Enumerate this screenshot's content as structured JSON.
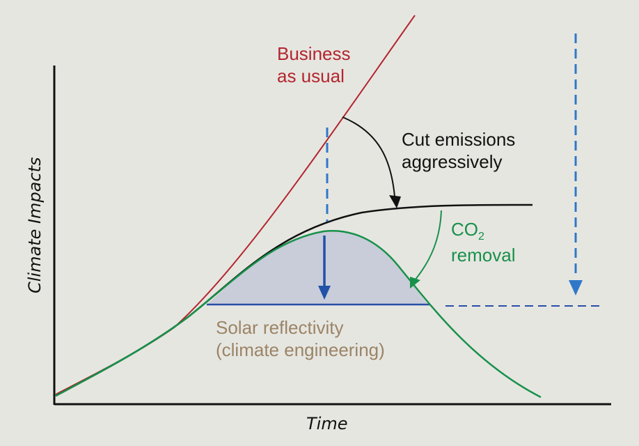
{
  "axes": {
    "x_title": "Time",
    "y_title": "Climate Impacts"
  },
  "labels": {
    "business_line1": "Business",
    "business_line2": "as usual",
    "cut_line1": "Cut emissions",
    "cut_line2": "aggressively",
    "co2_main": "CO",
    "co2_sub": "2",
    "co2_line2": "removal",
    "solar_line1": "Solar reflectivity",
    "solar_line2": "(climate engineering)"
  },
  "colors": {
    "background": "#e6e6e1",
    "business_as_usual": "#b3262e",
    "cut_emissions": "#111111",
    "co2_removal": "#17914a",
    "solar_reflectivity_text": "#9b8466",
    "solar_fill": "#c9ccd9",
    "blue_arrow": "#2152a8",
    "blue_dashed": "#2f78c8"
  }
}
